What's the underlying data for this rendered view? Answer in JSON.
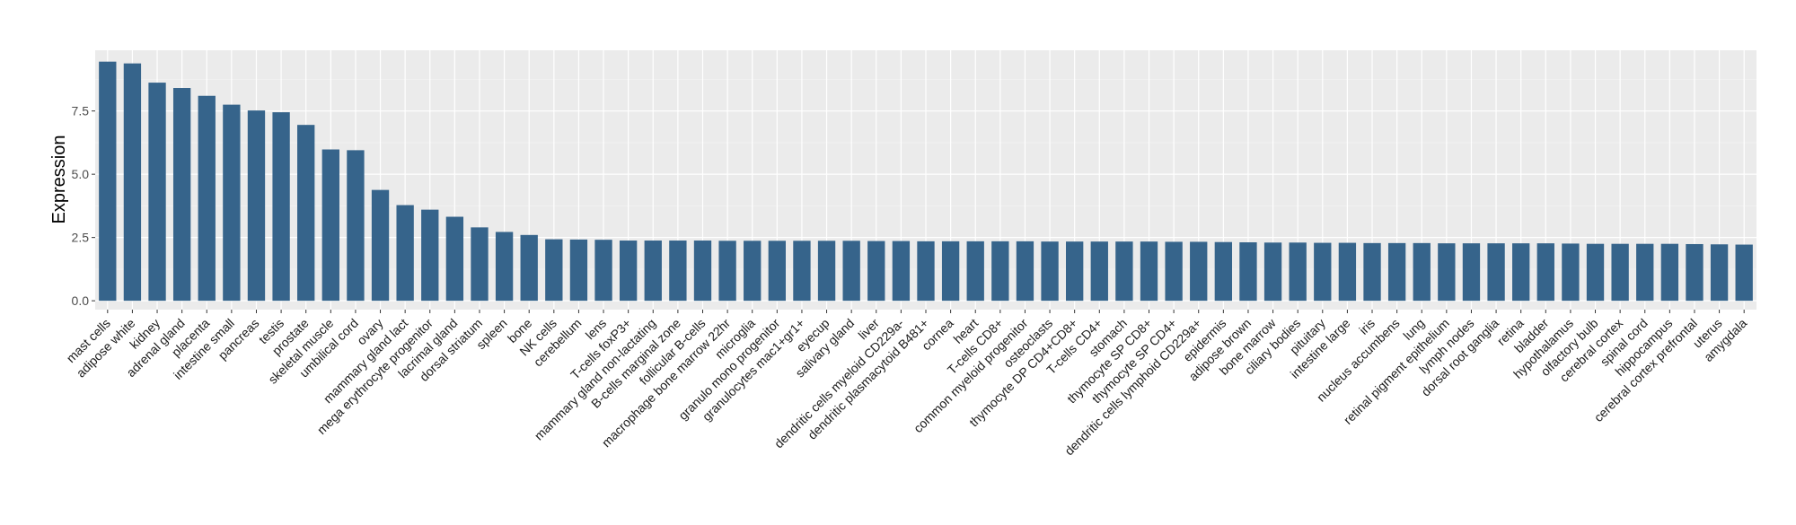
{
  "chart_data": {
    "type": "bar",
    "title": "",
    "xlabel": "",
    "ylabel": "Expression",
    "ylim": [
      -0.35,
      9.9
    ],
    "yticks": [
      0.0,
      2.5,
      5.0,
      7.5
    ],
    "ytick_labels": [
      "0.0",
      "2.5",
      "5.0",
      "7.5"
    ],
    "grid": true,
    "bar_color": "#36648b",
    "panel_color": "#ebebeb",
    "categories": [
      "mast cells",
      "adipose white",
      "kidney",
      "adrenal gland",
      "placenta",
      "intestine small",
      "pancreas",
      "testis",
      "prostate",
      "skeletal muscle",
      "umbilical cord",
      "ovary",
      "mammary gland  lact",
      "mega erythrocyte progenitor",
      "lacrimal gland",
      "dorsal striatum",
      "spleen",
      "bone",
      "NK cells",
      "cerebellum",
      "lens",
      "T-cells foxP3+",
      "mammary gland non-lactating",
      "B-cells marginal zone",
      "follicular B-cells",
      "macrophage bone marrow 22hr",
      "microglia",
      "granulo mono progenitor",
      "granulocytes mac1+gr1+",
      "eyecup",
      "salivary gland",
      "liver",
      "dendritic cells myeloid CD229a-",
      "dendritic plasmacytoid B481+",
      "cornea",
      "heart",
      "T-cells CD8+",
      "common myeloid progenitor",
      "osteoclasts",
      "thymocyte DP CD4+CD8+",
      "T-cells CD4+",
      "stomach",
      "thymocyte SP CD8+",
      "thymocyte SP CD4+",
      "dendritic cells lymphoid CD229a+",
      "epidermis",
      "adipose brown",
      "bone marrow",
      "ciliary bodies",
      "pituitary",
      "intestine large",
      "iris",
      "nucleus accumbens",
      "lung",
      "retinal pigment epithelium",
      "lymph nodes",
      "dorsal root ganglia",
      "retina",
      "bladder",
      "hypothalamus",
      "olfactory bulb",
      "cerebral cortex",
      "spinal cord",
      "hippocampus",
      "cerebral cortex prefrontal",
      "uterus",
      "amygdala"
    ],
    "values": [
      9.45,
      9.38,
      8.62,
      8.41,
      8.1,
      7.75,
      7.52,
      7.45,
      6.95,
      5.98,
      5.95,
      4.38,
      3.78,
      3.6,
      3.32,
      2.9,
      2.72,
      2.6,
      2.43,
      2.42,
      2.41,
      2.38,
      2.38,
      2.38,
      2.38,
      2.37,
      2.37,
      2.37,
      2.37,
      2.37,
      2.37,
      2.36,
      2.36,
      2.35,
      2.35,
      2.35,
      2.35,
      2.35,
      2.34,
      2.34,
      2.34,
      2.34,
      2.34,
      2.33,
      2.33,
      2.32,
      2.31,
      2.3,
      2.3,
      2.29,
      2.29,
      2.28,
      2.28,
      2.28,
      2.27,
      2.27,
      2.27,
      2.27,
      2.27,
      2.26,
      2.25,
      2.25,
      2.25,
      2.25,
      2.24,
      2.23,
      2.22
    ]
  }
}
